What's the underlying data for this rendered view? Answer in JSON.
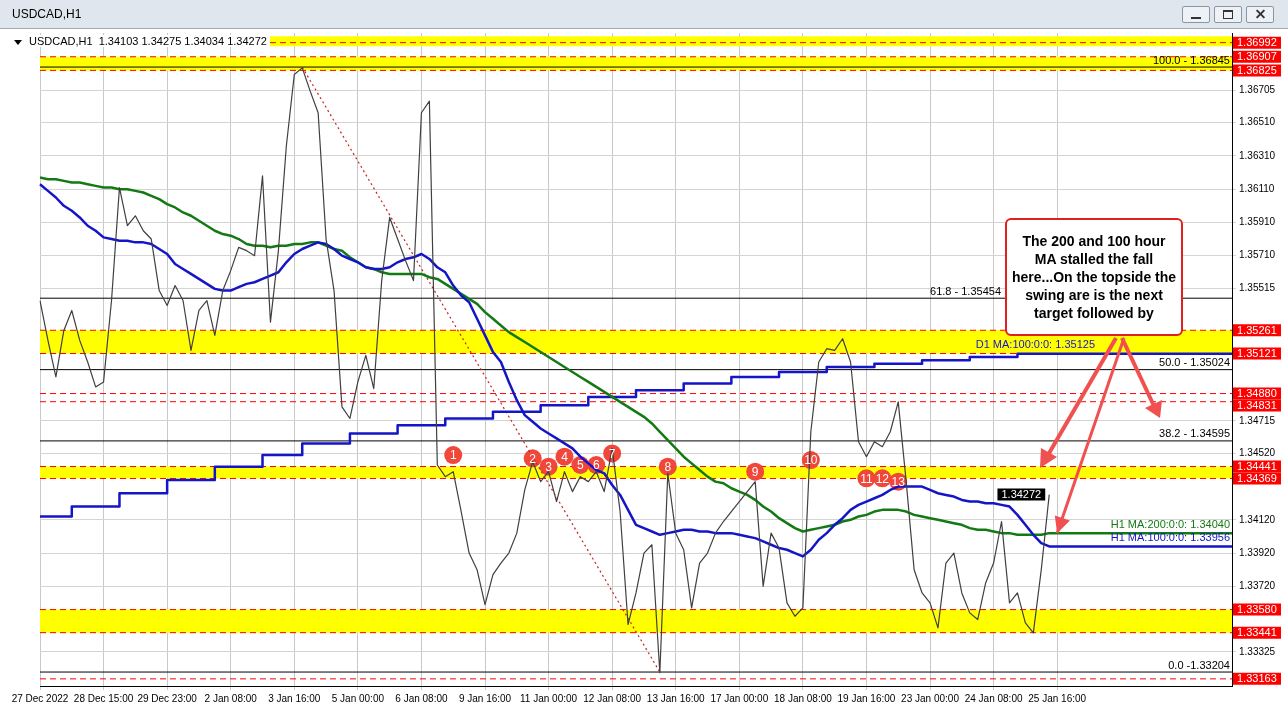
{
  "chart_data": {
    "type": "line",
    "title": "USDCAD,H1",
    "subtitle": "USDCAD,H1  1.34103 1.34275 1.34034 1.34272",
    "categories": [
      "27 Dec 2022",
      null,
      null,
      null,
      null,
      null,
      null,
      null,
      "28 Dec 15:00",
      null,
      null,
      null,
      null,
      null,
      null,
      null,
      "29 Dec 23:00",
      null,
      null,
      null,
      null,
      null,
      null,
      null,
      "2 Jan 08:00",
      null,
      null,
      null,
      null,
      null,
      null,
      null,
      "3 Jan 16:00",
      null,
      null,
      null,
      null,
      null,
      null,
      null,
      "5 Jan 00:00",
      null,
      null,
      null,
      null,
      null,
      null,
      null,
      "6 Jan 08:00",
      null,
      null,
      null,
      null,
      null,
      null,
      null,
      "9 Jan 16:00",
      null,
      null,
      null,
      null,
      null,
      null,
      null,
      "11 Jan 00:00",
      null,
      null,
      null,
      null,
      null,
      null,
      null,
      "12 Jan 08:00",
      null,
      null,
      null,
      null,
      null,
      null,
      null,
      "13 Jan 16:00",
      null,
      null,
      null,
      null,
      null,
      null,
      null,
      "17 Jan 00:00",
      null,
      null,
      null,
      null,
      null,
      null,
      null,
      "18 Jan 08:00",
      null,
      null,
      null,
      null,
      null,
      null,
      null,
      "19 Jan 16:00",
      null,
      null,
      null,
      null,
      null,
      null,
      null,
      "23 Jan 00:00",
      null,
      null,
      null,
      null,
      null,
      null,
      null,
      "24 Jan 08:00",
      null,
      null,
      null,
      null,
      null,
      null,
      null,
      "25 Jan 16:00",
      null,
      null,
      null,
      null,
      null,
      null,
      null,
      null,
      null,
      null,
      null,
      null,
      null,
      null,
      null,
      null,
      null,
      null,
      null,
      null,
      null,
      null
    ],
    "series": [
      {
        "type": "line",
        "color": "#404040",
        "values": [
          1.3544,
          1.352,
          1.3498,
          1.3526,
          1.3538,
          1.352,
          1.3507,
          1.3492,
          1.3495,
          1.3544,
          1.3612,
          1.3589,
          1.3595,
          1.3586,
          1.3581,
          1.355,
          1.3541,
          1.3553,
          1.3544,
          1.3514,
          1.3538,
          1.3544,
          1.3523,
          1.355,
          1.3562,
          1.3576,
          1.3574,
          1.3571,
          1.3619,
          1.3531,
          1.3574,
          1.3637,
          1.368,
          1.3684,
          1.367,
          1.3657,
          1.3581,
          1.355,
          1.348,
          1.3473,
          1.3495,
          1.3511,
          1.3491,
          1.3556,
          1.3594,
          1.3581,
          1.3568,
          1.3556,
          1.3657,
          1.3664,
          1.3445,
          1.3438,
          1.3441,
          1.3417,
          1.3392,
          1.3382,
          1.3361,
          1.3379,
          1.3386,
          1.3392,
          1.3404,
          1.343,
          1.3447,
          1.3435,
          1.3441,
          1.3423,
          1.3441,
          1.3429,
          1.3438,
          1.3435,
          1.3441,
          1.3429,
          1.3455,
          1.3417,
          1.3349,
          1.3368,
          1.3392,
          1.3397,
          1.332,
          1.344,
          1.3404,
          1.3394,
          1.3359,
          1.3386,
          1.3392,
          1.3404,
          1.3411,
          1.3417,
          1.3423,
          1.3429,
          1.3435,
          1.3372,
          1.3404,
          1.3395,
          1.3362,
          1.3354,
          1.3359,
          1.3465,
          1.3507,
          1.3515,
          1.3514,
          1.3521,
          1.3507,
          1.3459,
          1.345,
          1.3459,
          1.3456,
          1.3465,
          1.3483,
          1.3435,
          1.3382,
          1.3368,
          1.3362,
          1.3347,
          1.3386,
          1.3392,
          1.3368,
          1.3356,
          1.3352,
          1.3374,
          1.3386,
          1.3411,
          1.3362,
          1.3368,
          1.335,
          1.3344,
          1.3382,
          1.34272,
          null,
          null,
          null,
          null,
          null,
          null,
          null,
          null,
          null,
          null,
          null,
          null,
          null,
          null,
          null,
          null,
          null,
          null,
          null,
          null,
          null,
          null,
          null
        ],
        "value_labels": [
          null,
          null,
          null,
          null,
          null,
          null,
          null,
          null,
          null,
          null,
          null,
          null,
          null,
          null,
          null,
          null,
          null,
          null,
          null,
          null,
          null,
          null,
          null,
          null,
          null,
          null,
          null,
          null,
          null,
          null,
          null,
          null,
          null,
          null,
          null,
          null,
          null,
          null,
          null,
          null,
          null,
          null,
          null,
          null,
          null,
          null,
          null,
          null,
          null,
          null,
          null,
          null,
          null,
          null,
          null,
          null,
          null,
          null,
          null,
          null,
          null,
          null,
          null,
          null,
          null,
          null,
          null,
          null,
          null,
          null,
          null,
          null,
          null,
          null,
          null,
          null,
          null,
          null,
          null,
          null,
          null,
          null,
          null,
          null,
          null,
          null,
          null,
          null,
          null,
          null,
          null,
          null,
          null,
          null,
          null,
          null,
          null,
          null,
          null,
          null,
          null,
          null,
          null,
          null,
          null,
          null,
          null,
          null,
          null,
          null,
          null,
          null,
          null,
          null,
          null,
          null,
          null,
          null,
          null,
          null,
          null,
          null,
          null,
          null,
          null,
          null,
          null,
          "1.34272",
          null,
          null,
          null,
          null,
          null,
          null,
          null,
          null,
          null,
          null,
          null,
          null,
          null,
          null,
          null,
          null,
          null,
          null,
          null,
          null,
          null,
          null,
          null
        ]
      },
      {
        "type": "line",
        "name": "H1 MA:100:0:0: 1.33956",
        "color": "#1515c8",
        "values": [
          1.3614,
          1.361,
          1.3606,
          1.3601,
          1.3598,
          1.3594,
          1.3589,
          1.3586,
          1.3582,
          1.3581,
          1.358,
          1.358,
          1.3579,
          1.3579,
          1.3578,
          1.3575,
          1.3572,
          1.3566,
          1.3563,
          1.356,
          1.3557,
          1.3554,
          1.3551,
          1.355,
          1.355,
          1.3552,
          1.3554,
          1.3555,
          1.3557,
          1.3559,
          1.3561,
          1.3567,
          1.3572,
          1.3575,
          1.3577,
          1.3579,
          1.3578,
          1.3575,
          1.3571,
          1.3569,
          1.3567,
          1.3564,
          1.3563,
          1.3563,
          1.3564,
          1.3567,
          1.3569,
          1.357,
          1.3572,
          1.3569,
          1.3564,
          1.3561,
          1.3553,
          1.3547,
          1.3543,
          1.3533,
          1.3523,
          1.3513,
          1.3507,
          1.3495,
          1.3484,
          1.3475,
          1.3471,
          1.3467,
          1.3464,
          1.3461,
          1.3458,
          1.3455,
          1.345,
          1.3446,
          1.3442,
          1.344,
          1.3433,
          1.3427,
          1.3418,
          1.3409,
          1.3407,
          1.3405,
          1.3403,
          1.3404,
          1.3405,
          1.3406,
          1.3406,
          1.3405,
          1.3405,
          1.3404,
          1.3404,
          1.3404,
          1.3403,
          1.3402,
          1.3401,
          1.3399,
          1.3397,
          1.3395,
          1.3394,
          1.3392,
          1.339,
          1.3394,
          1.34,
          1.3404,
          1.3409,
          1.3413,
          1.3418,
          1.3421,
          1.3423,
          1.3425,
          1.3427,
          1.343,
          1.3432,
          1.3432,
          1.3432,
          1.3432,
          1.343,
          1.3428,
          1.3427,
          1.3426,
          1.3424,
          1.3423,
          1.3423,
          1.3422,
          1.3422,
          1.3421,
          1.342,
          1.3415,
          1.3409,
          1.3403,
          1.3398,
          1.3396,
          1.3396,
          1.3396,
          1.3396,
          1.3396,
          1.3396,
          1.3396,
          1.3396,
          1.3396,
          1.3396,
          1.3396,
          1.3396,
          1.3396,
          1.3396,
          1.3396,
          1.3396,
          1.3396,
          1.3396,
          1.3396,
          1.3396,
          1.3396,
          1.3396,
          1.3396,
          1.3396
        ]
      },
      {
        "type": "line",
        "name": "H1 MA:200:0:0: 1.34040",
        "color": "#137a13",
        "values": [
          1.3618,
          1.3617,
          1.3617,
          1.3616,
          1.3615,
          1.3615,
          1.3614,
          1.3613,
          1.3612,
          1.3612,
          1.3611,
          1.3611,
          1.361,
          1.3609,
          1.3607,
          1.3605,
          1.3602,
          1.36,
          1.3597,
          1.3595,
          1.3592,
          1.3589,
          1.3586,
          1.3584,
          1.3583,
          1.3581,
          1.3578,
          1.3577,
          1.3577,
          1.3576,
          1.3577,
          1.3577,
          1.3578,
          1.3578,
          1.3579,
          1.3579,
          1.3577,
          1.3575,
          1.3574,
          1.357,
          1.3567,
          1.3564,
          1.3563,
          1.3561,
          1.356,
          1.356,
          1.356,
          1.356,
          1.356,
          1.3558,
          1.3557,
          1.3554,
          1.3551,
          1.3548,
          1.3545,
          1.3542,
          1.3537,
          1.3533,
          1.3529,
          1.3525,
          1.3522,
          1.3519,
          1.3516,
          1.3513,
          1.351,
          1.3507,
          1.3504,
          1.3501,
          1.3498,
          1.3495,
          1.3492,
          1.3489,
          1.3486,
          1.3483,
          1.348,
          1.3477,
          1.3474,
          1.347,
          1.3465,
          1.346,
          1.3455,
          1.345,
          1.3446,
          1.3442,
          1.3438,
          1.3435,
          1.3434,
          1.3431,
          1.3429,
          1.3427,
          1.3424,
          1.342,
          1.3417,
          1.3413,
          1.341,
          1.3407,
          1.3405,
          1.3406,
          1.3407,
          1.3408,
          1.3409,
          1.3411,
          1.3412,
          1.3414,
          1.3415,
          1.3417,
          1.3418,
          1.3418,
          1.3418,
          1.3417,
          1.3415,
          1.3414,
          1.3413,
          1.3412,
          1.3411,
          1.341,
          1.3409,
          1.3407,
          1.3406,
          1.3406,
          1.3405,
          1.3404,
          1.3404,
          1.3403,
          1.3403,
          1.3403,
          1.3403,
          1.3404,
          1.3404,
          1.3404,
          1.3404,
          1.3404,
          1.3404,
          1.3404,
          1.3404,
          1.3404,
          1.3404,
          1.3404,
          1.3404,
          1.3404,
          1.3404,
          1.3404,
          1.3404,
          1.3404,
          1.3404,
          1.3404,
          1.3404,
          1.3404,
          1.3404,
          1.3404,
          1.3404
        ]
      },
      {
        "type": "step",
        "name": "D1 MA:100:0:0: 1.35125",
        "color": "#1515c8",
        "values": [
          1.3414,
          1.3414,
          1.3414,
          1.3414,
          1.342,
          1.342,
          1.342,
          1.342,
          1.342,
          1.342,
          1.3428,
          1.3428,
          1.3428,
          1.3428,
          1.3428,
          1.3428,
          1.3436,
          1.3436,
          1.3436,
          1.3436,
          1.3436,
          1.3436,
          1.3444,
          1.3444,
          1.3444,
          1.3444,
          1.3444,
          1.3444,
          1.3451,
          1.3451,
          1.3451,
          1.3451,
          1.3451,
          1.3458,
          1.3458,
          1.3458,
          1.3458,
          1.3458,
          1.3458,
          1.3464,
          1.3464,
          1.3464,
          1.3464,
          1.3464,
          1.3464,
          1.3469,
          1.3469,
          1.3469,
          1.3469,
          1.3469,
          1.3469,
          1.3473,
          1.3473,
          1.3473,
          1.3473,
          1.3473,
          1.3473,
          1.3477,
          1.3477,
          1.3477,
          1.3477,
          1.3477,
          1.3477,
          1.3481,
          1.3481,
          1.3481,
          1.3481,
          1.3481,
          1.3481,
          1.3486,
          1.3486,
          1.3486,
          1.3486,
          1.3486,
          1.3486,
          1.349,
          1.349,
          1.349,
          1.349,
          1.349,
          1.349,
          1.3494,
          1.3494,
          1.3494,
          1.3494,
          1.3494,
          1.3494,
          1.3498,
          1.3498,
          1.3498,
          1.3498,
          1.3498,
          1.3498,
          1.3501,
          1.3501,
          1.3501,
          1.3501,
          1.3501,
          1.3501,
          1.3504,
          1.3504,
          1.3504,
          1.3504,
          1.3504,
          1.3504,
          1.3506,
          1.3506,
          1.3506,
          1.3506,
          1.3506,
          1.3506,
          1.3508,
          1.3508,
          1.3508,
          1.3508,
          1.3508,
          1.3508,
          1.351,
          1.351,
          1.351,
          1.351,
          1.351,
          1.351,
          1.3512,
          1.3512,
          1.3512,
          1.3512,
          1.3512,
          1.3512,
          1.3512,
          1.3512,
          1.3512,
          1.3512,
          1.3512,
          1.3512,
          1.3512,
          1.3512,
          1.3512,
          1.3512,
          1.3512,
          1.3512,
          1.3512,
          1.3512,
          1.3512,
          1.3512,
          1.3512,
          1.3512,
          1.3512,
          1.3512,
          1.3512,
          1.3512
        ]
      },
      {
        "type": "line",
        "color": "#cc2020",
        "line_style": "dotted",
        "values": [
          null,
          null,
          null,
          null,
          null,
          null,
          null,
          null,
          null,
          null,
          null,
          null,
          null,
          null,
          null,
          null,
          null,
          null,
          null,
          null,
          null,
          null,
          null,
          null,
          null,
          null,
          null,
          null,
          null,
          null,
          null,
          null,
          null,
          1.36845,
          null,
          null,
          null,
          null,
          null,
          null,
          null,
          null,
          null,
          null,
          null,
          null,
          null,
          null,
          null,
          null,
          null,
          null,
          null,
          null,
          null,
          null,
          null,
          null,
          null,
          null,
          null,
          null,
          null,
          null,
          null,
          null,
          null,
          null,
          null,
          null,
          null,
          null,
          null,
          null,
          null,
          null,
          null,
          null,
          1.33204,
          null,
          null,
          null,
          null,
          null,
          null,
          null,
          null,
          null,
          null,
          null,
          null,
          null,
          null,
          null,
          null,
          null,
          null,
          null,
          null,
          null,
          null,
          null,
          null,
          null,
          null,
          null,
          null,
          null,
          null,
          null,
          null,
          null,
          null,
          null,
          null,
          null,
          null,
          null,
          null,
          null,
          null,
          null,
          null,
          null,
          null,
          null,
          null,
          null,
          null,
          null,
          null,
          null,
          null,
          null,
          null,
          null,
          null,
          null,
          null,
          null,
          null,
          null,
          null,
          null,
          null,
          null,
          null,
          null,
          null,
          null,
          null
        ]
      },
      {
        "type": "scatter",
        "color": "#f0473a",
        "marker": "circle",
        "values": [
          null,
          null,
          null,
          null,
          null,
          null,
          null,
          null,
          null,
          null,
          null,
          null,
          null,
          null,
          null,
          null,
          null,
          null,
          null,
          null,
          null,
          null,
          null,
          null,
          null,
          null,
          null,
          null,
          null,
          null,
          null,
          null,
          null,
          null,
          null,
          null,
          null,
          null,
          null,
          null,
          null,
          null,
          null,
          null,
          null,
          null,
          null,
          null,
          null,
          null,
          null,
          null,
          1.3451,
          null,
          null,
          null,
          null,
          null,
          null,
          null,
          null,
          null,
          1.3449,
          null,
          1.3444,
          null,
          1.345,
          null,
          1.3445,
          null,
          1.3445,
          null,
          1.3452,
          null,
          null,
          null,
          null,
          null,
          null,
          1.3444,
          null,
          null,
          null,
          null,
          null,
          null,
          null,
          null,
          null,
          null,
          1.3441,
          null,
          null,
          null,
          null,
          null,
          null,
          1.3448,
          null,
          null,
          null,
          null,
          null,
          null,
          1.3437,
          null,
          1.3437,
          null,
          1.3435,
          null,
          null,
          null,
          null,
          null,
          null,
          null,
          null,
          null,
          null,
          null,
          null,
          null,
          null,
          null,
          null,
          null,
          null,
          null,
          null,
          null,
          null,
          null,
          null,
          null,
          null,
          null,
          null,
          null,
          null,
          null,
          null,
          null,
          null,
          null,
          null,
          null,
          null,
          null,
          null,
          null,
          null
        ]
      }
    ],
    "ylim": [
      1.3312,
      1.3705
    ],
    "yticks": [
      1.36705,
      {
        "value": 1.3651,
        "label": "1.36510"
      },
      {
        "value": 1.3631,
        "label": "1.36310"
      },
      {
        "value": 1.3611,
        "label": "1.36110"
      },
      {
        "value": 1.3591,
        "label": "1.35910"
      },
      {
        "value": 1.3571,
        "label": "1.35710"
      },
      1.35515,
      1.34715,
      {
        "value": 1.3452,
        "label": "1.34520"
      },
      {
        "value": 1.3412,
        "label": "1.34120"
      },
      {
        "value": 1.3392,
        "label": "1.33920"
      },
      {
        "value": 1.3372,
        "label": "1.33720"
      },
      1.33325
    ],
    "bands": [
      {
        "axis": "y",
        "from": 1.3697,
        "to": 1.3703,
        "color": "#ffff00"
      },
      {
        "axis": "y",
        "from": 1.36825,
        "to": 1.36907,
        "color": "#ffff00"
      },
      {
        "axis": "y",
        "from": 1.35121,
        "to": 1.35261,
        "color": "#ffff00"
      },
      {
        "axis": "y",
        "from": 1.34369,
        "to": 1.34441,
        "color": "#ffff00"
      },
      {
        "axis": "y",
        "from": 1.33441,
        "to": 1.3358,
        "color": "#ffff00"
      }
    ],
    "ref_lines": [
      {
        "axis": "y",
        "value": 1.36992,
        "label": "1.36992",
        "color": "#ff0000",
        "line_style": "dashed"
      },
      {
        "axis": "y",
        "value": 1.36907,
        "label": "1.36907",
        "color": "#ff0000",
        "line_style": "dashed"
      },
      {
        "axis": "y",
        "value": 1.36825,
        "label": "1.36825",
        "color": "#ff0000",
        "line_style": "dashed"
      },
      {
        "axis": "y",
        "value": 1.35261,
        "label": "1.35261",
        "color": "#ff0000",
        "line_style": "dashed"
      },
      {
        "axis": "y",
        "value": 1.35121,
        "label": "1.35121",
        "color": "#ff0000",
        "line_style": "dashed"
      },
      {
        "axis": "y",
        "value": 1.3488,
        "label": "1.34880",
        "color": "#ff0000",
        "line_style": "dashed"
      },
      {
        "axis": "y",
        "value": 1.34831,
        "label": "1.34831",
        "color": "#ff0000",
        "line_style": "dashed"
      },
      {
        "axis": "y",
        "value": 1.34441,
        "label": "1.34441",
        "color": "#ff0000",
        "line_style": "dashed"
      },
      {
        "axis": "y",
        "value": 1.34369,
        "label": "1.34369",
        "color": "#ff0000",
        "line_style": "dashed"
      },
      {
        "axis": "y",
        "value": 1.3358,
        "label": "1.33580",
        "color": "#ff0000",
        "line_style": "dashed"
      },
      {
        "axis": "y",
        "value": 1.33441,
        "label": "1.33441",
        "color": "#ff0000",
        "line_style": "dashed"
      },
      {
        "axis": "y",
        "value": 1.33163,
        "label": "1.33163",
        "color": "#ff0000",
        "line_style": "dashed"
      },
      {
        "axis": "y",
        "value": 1.36845,
        "color": "#000000",
        "line_style": "solid"
      },
      {
        "axis": "y",
        "value": 1.35454,
        "color": "#000000",
        "line_style": "solid"
      },
      {
        "axis": "y",
        "value": 1.35024,
        "color": "#000000",
        "line_style": "solid"
      },
      {
        "axis": "y",
        "value": 1.34595,
        "color": "#000000",
        "line_style": "solid"
      },
      {
        "axis": "y",
        "value": 1.33204,
        "color": "#000000",
        "line_style": "solid"
      }
    ],
    "annotations": [
      {
        "text": "The 200 and 100 hour MA stalled the fall here...On the topside the swing are is the next target followed by",
        "x": "25 Jan 16:00",
        "y": 1.3404
      },
      {
        "text": "100.0 - 1.36845",
        "y": 1.36845
      },
      {
        "text": "61.8 - 1.35454",
        "y": 1.35454
      },
      {
        "text": "50.0 - 1.35024",
        "y": 1.35024
      },
      {
        "text": "38.2 - 1.34595",
        "y": 1.34595
      },
      {
        "text": "0.0 -1.33204",
        "y": 1.33204
      },
      {
        "text": "1",
        "y": 1.3451
      },
      {
        "text": "2",
        "y": 1.3449
      },
      {
        "text": "3",
        "y": 1.3444
      },
      {
        "text": "4",
        "y": 1.345
      },
      {
        "text": "5",
        "y": 1.3445
      },
      {
        "text": "6",
        "y": 1.3445
      },
      {
        "text": "7",
        "y": 1.3452
      },
      {
        "text": "8",
        "y": 1.3444
      },
      {
        "text": "9",
        "y": 1.3441
      },
      {
        "text": "10",
        "y": 1.3448
      },
      {
        "text": "11",
        "y": 1.3437
      },
      {
        "text": "12",
        "y": 1.3437
      },
      {
        "text": "13",
        "y": 1.3435
      }
    ],
    "grid": true,
    "legend": false,
    "marker": "none"
  }
}
